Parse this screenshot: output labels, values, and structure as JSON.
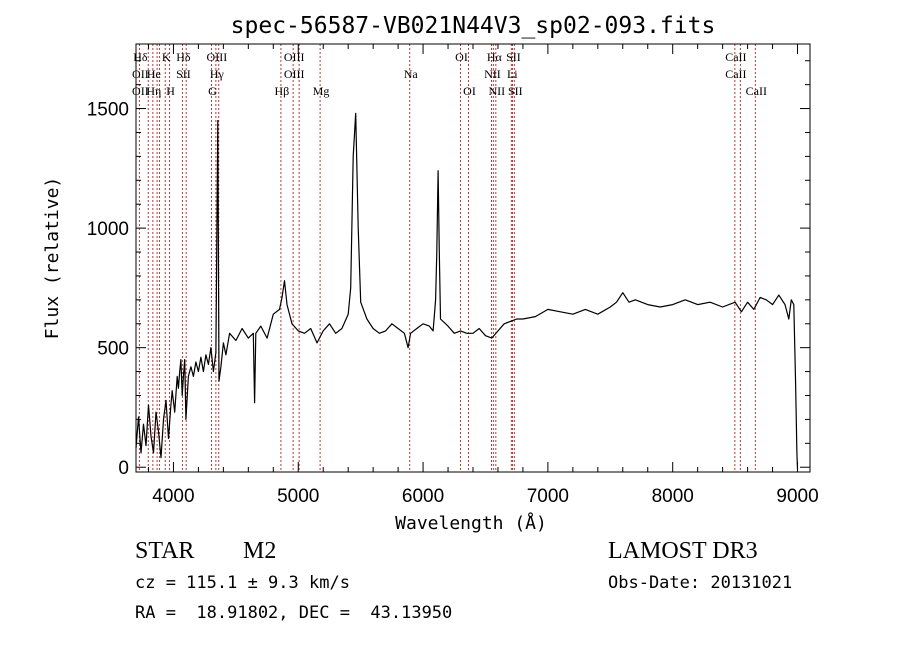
{
  "chart_data": {
    "type": "line",
    "title": "spec-56587-VB021N44V3_sp02-093.fits",
    "xlabel": "Wavelength (Å)",
    "ylabel": "Flux (relative)",
    "xlim": [
      3700,
      9100
    ],
    "ylim": [
      -20,
      1770
    ],
    "x_major_ticks": [
      4000,
      5000,
      6000,
      7000,
      8000,
      9000
    ],
    "y_major_ticks": [
      0,
      500,
      1000,
      1500
    ],
    "series": [
      {
        "points": [
          [
            3700,
            80
          ],
          [
            3720,
            210
          ],
          [
            3740,
            60
          ],
          [
            3760,
            180
          ],
          [
            3780,
            90
          ],
          [
            3800,
            260
          ],
          [
            3820,
            130
          ],
          [
            3840,
            60
          ],
          [
            3860,
            230
          ],
          [
            3880,
            150
          ],
          [
            3900,
            40
          ],
          [
            3920,
            200
          ],
          [
            3940,
            280
          ],
          [
            3960,
            120
          ],
          [
            3980,
            260
          ],
          [
            3990,
            320
          ],
          [
            4010,
            230
          ],
          [
            4030,
            380
          ],
          [
            4040,
            330
          ],
          [
            4050,
            400
          ],
          [
            4060,
            450
          ],
          [
            4070,
            300
          ],
          [
            4080,
            380
          ],
          [
            4090,
            450
          ],
          [
            4100,
            200
          ],
          [
            4120,
            380
          ],
          [
            4140,
            420
          ],
          [
            4160,
            380
          ],
          [
            4180,
            440
          ],
          [
            4200,
            400
          ],
          [
            4220,
            460
          ],
          [
            4240,
            400
          ],
          [
            4260,
            470
          ],
          [
            4280,
            430
          ],
          [
            4300,
            500
          ],
          [
            4320,
            400
          ],
          [
            4340,
            480
          ],
          [
            4355,
            1450
          ],
          [
            4365,
            360
          ],
          [
            4380,
            420
          ],
          [
            4400,
            520
          ],
          [
            4420,
            470
          ],
          [
            4450,
            560
          ],
          [
            4500,
            530
          ],
          [
            4550,
            580
          ],
          [
            4600,
            540
          ],
          [
            4640,
            560
          ],
          [
            4650,
            270
          ],
          [
            4660,
            560
          ],
          [
            4700,
            590
          ],
          [
            4750,
            540
          ],
          [
            4800,
            640
          ],
          [
            4850,
            660
          ],
          [
            4870,
            710
          ],
          [
            4890,
            780
          ],
          [
            4910,
            680
          ],
          [
            4950,
            600
          ],
          [
            5000,
            570
          ],
          [
            5050,
            560
          ],
          [
            5100,
            580
          ],
          [
            5150,
            520
          ],
          [
            5200,
            570
          ],
          [
            5250,
            600
          ],
          [
            5300,
            560
          ],
          [
            5350,
            580
          ],
          [
            5400,
            640
          ],
          [
            5420,
            750
          ],
          [
            5440,
            1300
          ],
          [
            5460,
            1480
          ],
          [
            5480,
            1000
          ],
          [
            5500,
            690
          ],
          [
            5550,
            620
          ],
          [
            5600,
            580
          ],
          [
            5650,
            560
          ],
          [
            5700,
            570
          ],
          [
            5750,
            600
          ],
          [
            5800,
            580
          ],
          [
            5850,
            560
          ],
          [
            5880,
            500
          ],
          [
            5900,
            560
          ],
          [
            5950,
            580
          ],
          [
            6000,
            600
          ],
          [
            6050,
            590
          ],
          [
            6080,
            570
          ],
          [
            6100,
            700
          ],
          [
            6110,
            900
          ],
          [
            6120,
            1240
          ],
          [
            6130,
            900
          ],
          [
            6140,
            620
          ],
          [
            6200,
            590
          ],
          [
            6250,
            560
          ],
          [
            6300,
            570
          ],
          [
            6350,
            560
          ],
          [
            6400,
            560
          ],
          [
            6450,
            580
          ],
          [
            6500,
            550
          ],
          [
            6550,
            540
          ],
          [
            6600,
            570
          ],
          [
            6650,
            600
          ],
          [
            6700,
            610
          ],
          [
            6750,
            620
          ],
          [
            6800,
            620
          ],
          [
            6900,
            630
          ],
          [
            7000,
            660
          ],
          [
            7100,
            650
          ],
          [
            7200,
            640
          ],
          [
            7300,
            660
          ],
          [
            7400,
            640
          ],
          [
            7500,
            670
          ],
          [
            7550,
            690
          ],
          [
            7600,
            730
          ],
          [
            7650,
            690
          ],
          [
            7700,
            700
          ],
          [
            7800,
            680
          ],
          [
            7900,
            670
          ],
          [
            8000,
            680
          ],
          [
            8100,
            700
          ],
          [
            8200,
            680
          ],
          [
            8300,
            690
          ],
          [
            8400,
            670
          ],
          [
            8500,
            690
          ],
          [
            8550,
            650
          ],
          [
            8600,
            690
          ],
          [
            8650,
            660
          ],
          [
            8700,
            710
          ],
          [
            8750,
            700
          ],
          [
            8800,
            680
          ],
          [
            8850,
            720
          ],
          [
            8900,
            680
          ],
          [
            8930,
            620
          ],
          [
            8950,
            700
          ],
          [
            8970,
            680
          ],
          [
            8985,
            350
          ],
          [
            8995,
            60
          ],
          [
            9000,
            -10
          ]
        ]
      }
    ],
    "spectral_lines": [
      {
        "wl": 3727,
        "top": "Hδ",
        "mid": "OII",
        "low": "OII"
      },
      {
        "wl": 3798
      },
      {
        "wl": 3835,
        "mid": "He",
        "low": "Hη"
      },
      {
        "wl": 3869
      },
      {
        "wl": 3889
      },
      {
        "wl": 3934,
        "top": "K"
      },
      {
        "wl": 3969,
        "low": "H"
      },
      {
        "wl": 4072,
        "top": "Hδ",
        "mid": "SII"
      },
      {
        "wl": 4102
      },
      {
        "wl": 4305,
        "low": "G"
      },
      {
        "wl": 4340,
        "top": "OIII",
        "mid": "Hγ"
      },
      {
        "wl": 4363
      },
      {
        "wl": 4861,
        "low": "Hβ"
      },
      {
        "wl": 4959,
        "top": "OIII",
        "mid": "OIII"
      },
      {
        "wl": 5007
      },
      {
        "wl": 5175,
        "low": "Mg"
      },
      {
        "wl": 5893,
        "mid": "Na"
      },
      {
        "wl": 6300,
        "top": "OI"
      },
      {
        "wl": 6364,
        "low": "OI"
      },
      {
        "wl": 6548,
        "mid": "NII"
      },
      {
        "wl": 6563,
        "top": "Hα"
      },
      {
        "wl": 6583,
        "low": "NII"
      },
      {
        "wl": 6707,
        "mid": "Li"
      },
      {
        "wl": 6716,
        "top": "SII"
      },
      {
        "wl": 6731,
        "low": "SII"
      },
      {
        "wl": 8498,
        "top": "CaII",
        "mid": "CaII"
      },
      {
        "wl": 8542
      },
      {
        "wl": 8662,
        "low": "CaII"
      }
    ]
  },
  "info": {
    "object_class": "STAR",
    "subclass": "M2",
    "survey": "LAMOST DR3",
    "redshift": "cz = 115.1 ± 9.3 km/s",
    "obs_date": "Obs-Date: 20131021",
    "coords": "RA =  18.91802, DEC =  43.13950"
  }
}
